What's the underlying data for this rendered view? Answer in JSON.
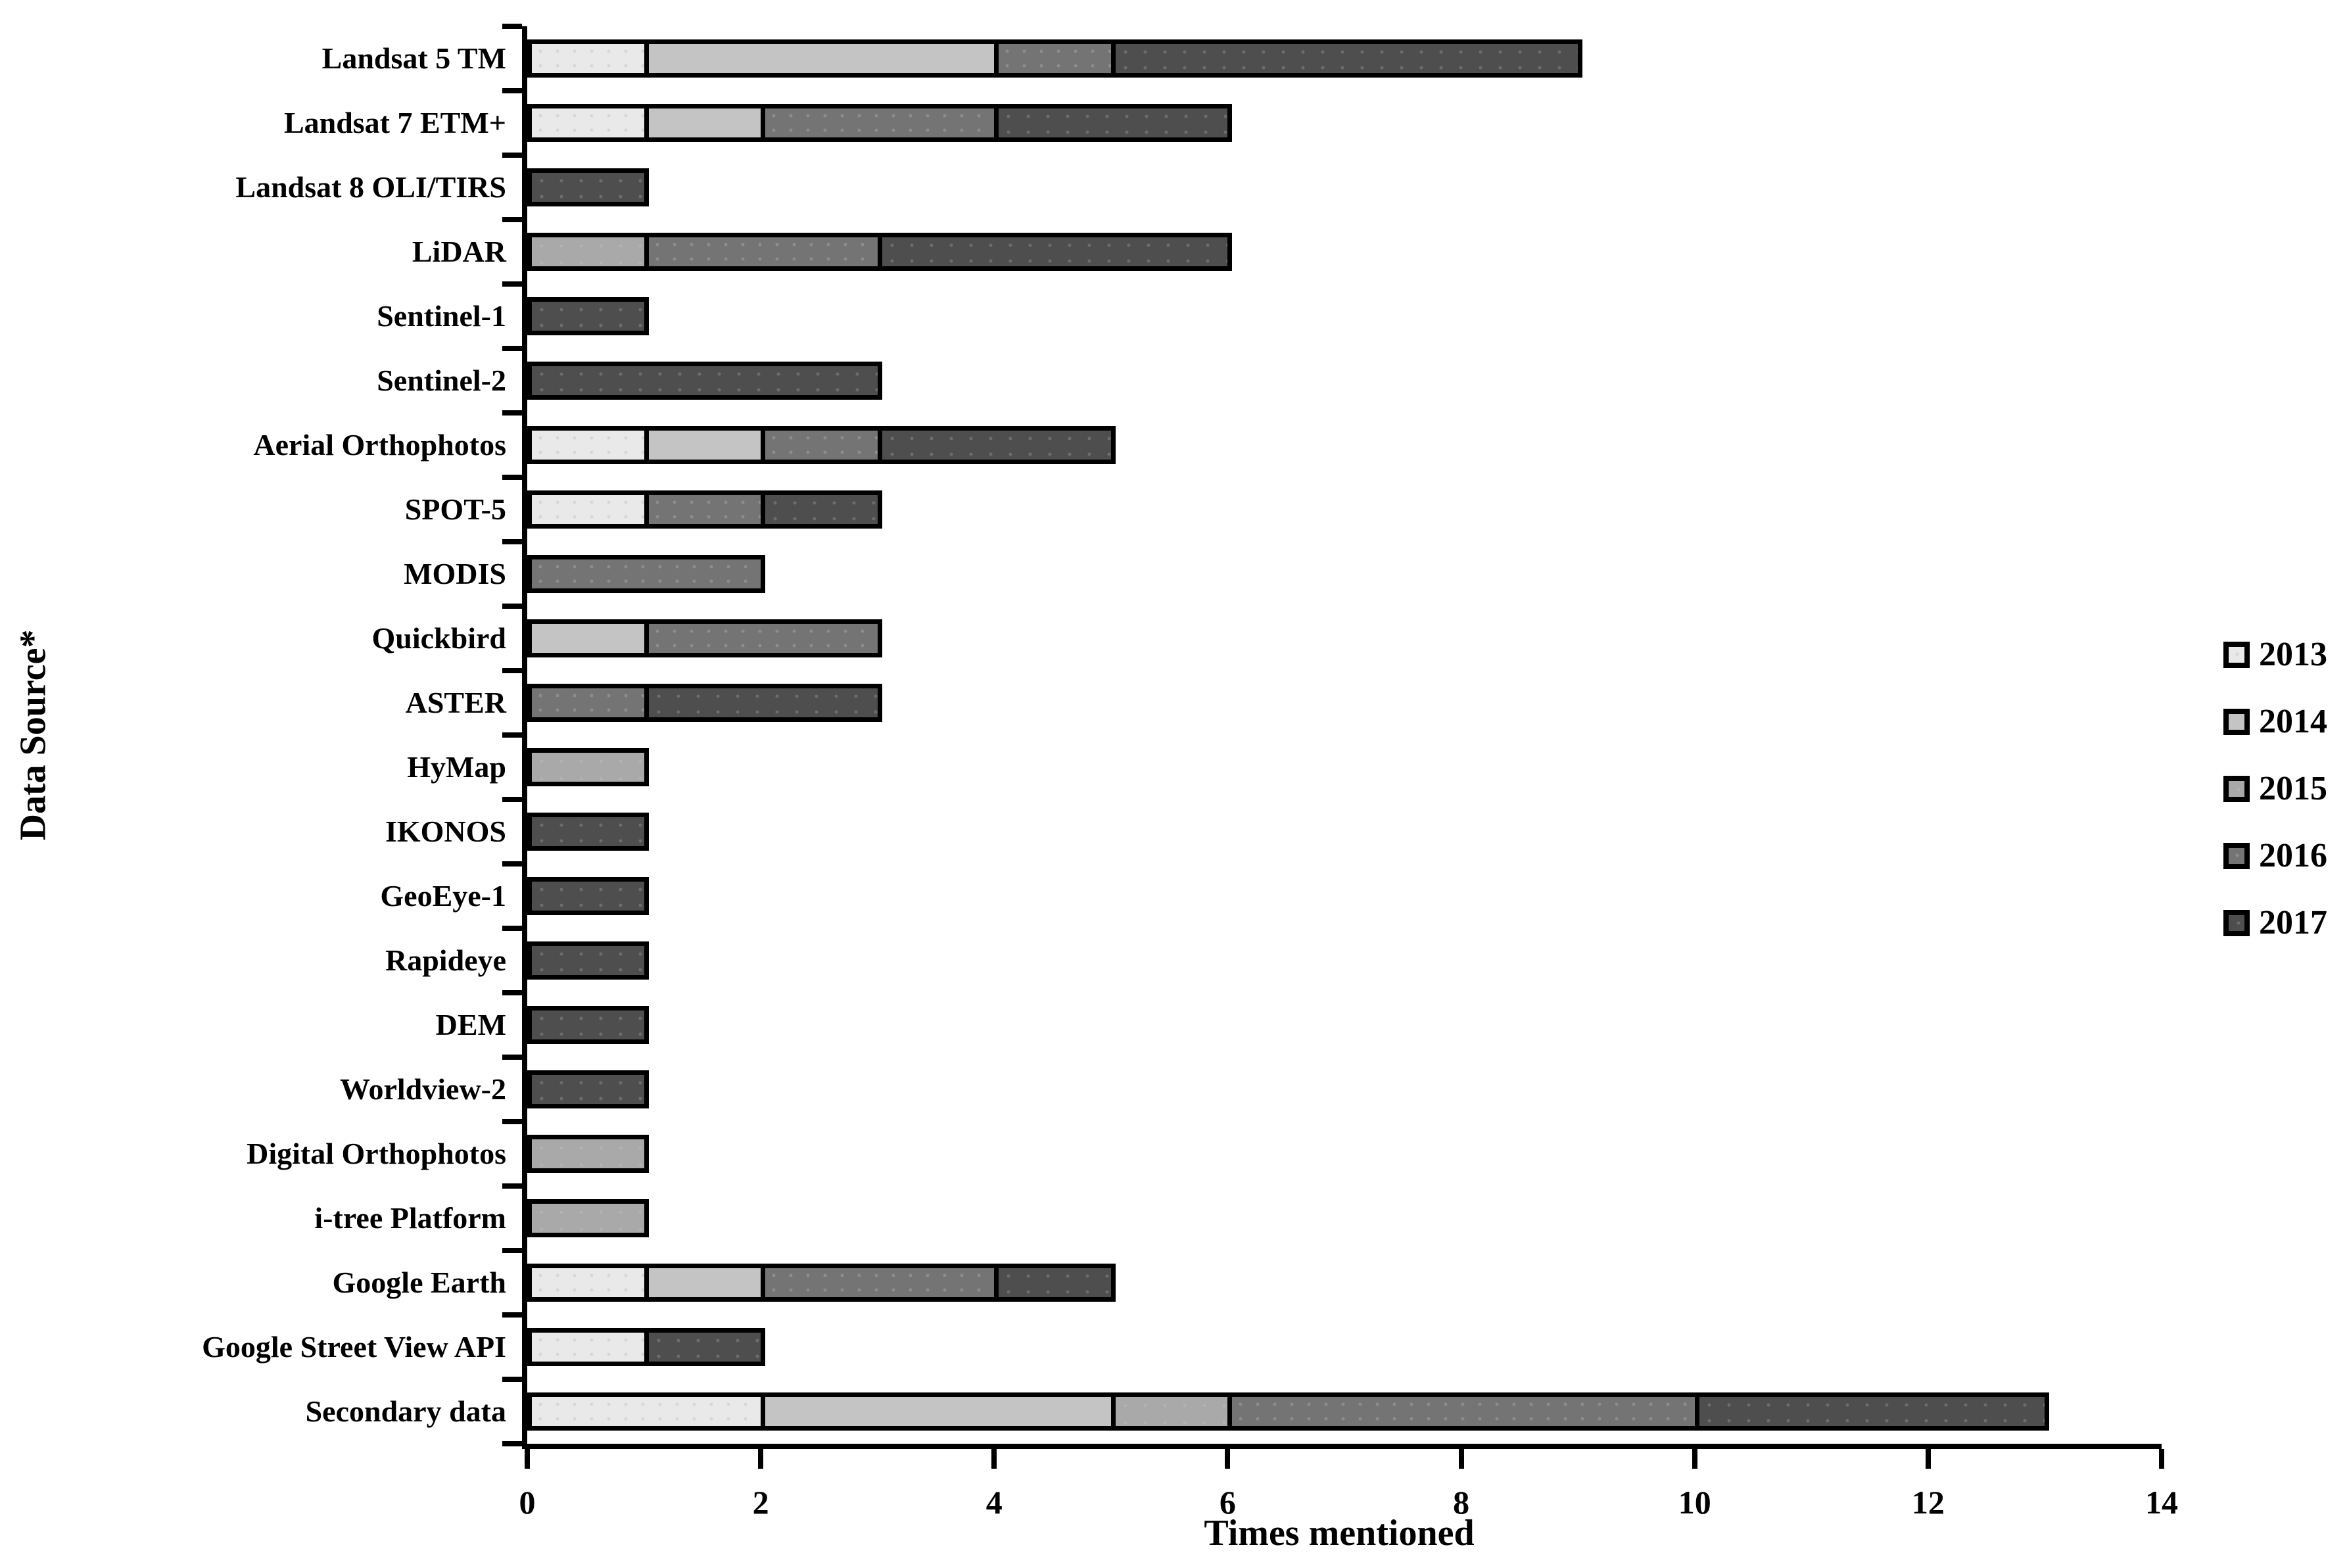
{
  "chart_data": {
    "type": "bar",
    "orientation": "horizontal",
    "stacked": true,
    "xlabel": "Times mentioned",
    "ylabel": "Data Source*",
    "xlim": [
      0,
      14
    ],
    "xticks": [
      0,
      2,
      4,
      6,
      8,
      10,
      12,
      14
    ],
    "grid": false,
    "legend_position": "right",
    "categories": [
      "Landsat 5 TM",
      "Landsat 7 ETM+",
      "Landsat 8 OLI/TIRS",
      "LiDAR",
      "Sentinel-1",
      "Sentinel-2",
      "Aerial Orthophotos",
      "SPOT-5",
      "MODIS",
      "Quickbird",
      "ASTER",
      "HyMap",
      "IKONOS",
      "GeoEye-1",
      "Rapideye",
      "DEM",
      "Worldview-2",
      "Digital Orthophotos",
      "i-tree Platform",
      "Google Earth",
      "Google Street View API",
      "Secondary data"
    ],
    "series": [
      {
        "name": "2013",
        "color": "#e9e9e9",
        "values": [
          1,
          1,
          0,
          0,
          0,
          0,
          1,
          1,
          0,
          0,
          0,
          0,
          0,
          0,
          0,
          0,
          0,
          0,
          0,
          1,
          1,
          2
        ]
      },
      {
        "name": "2014",
        "color": "#c4c4c4",
        "values": [
          3,
          1,
          0,
          0,
          0,
          0,
          1,
          0,
          0,
          1,
          0,
          0,
          0,
          0,
          0,
          0,
          0,
          0,
          0,
          1,
          0,
          3
        ]
      },
      {
        "name": "2015",
        "color": "#a9a9a9",
        "values": [
          0,
          0,
          0,
          1,
          0,
          0,
          0,
          0,
          0,
          0,
          0,
          1,
          0,
          0,
          0,
          0,
          0,
          1,
          1,
          0,
          0,
          1
        ]
      },
      {
        "name": "2016",
        "color": "#747474",
        "values": [
          1,
          2,
          0,
          2,
          0,
          0,
          1,
          1,
          2,
          2,
          1,
          0,
          0,
          0,
          0,
          0,
          0,
          0,
          0,
          2,
          0,
          4
        ]
      },
      {
        "name": "2017",
        "color": "#4e4e4e",
        "values": [
          4,
          2,
          1,
          3,
          1,
          3,
          2,
          1,
          0,
          0,
          2,
          0,
          1,
          1,
          1,
          1,
          1,
          0,
          0,
          1,
          1,
          3
        ]
      }
    ]
  }
}
